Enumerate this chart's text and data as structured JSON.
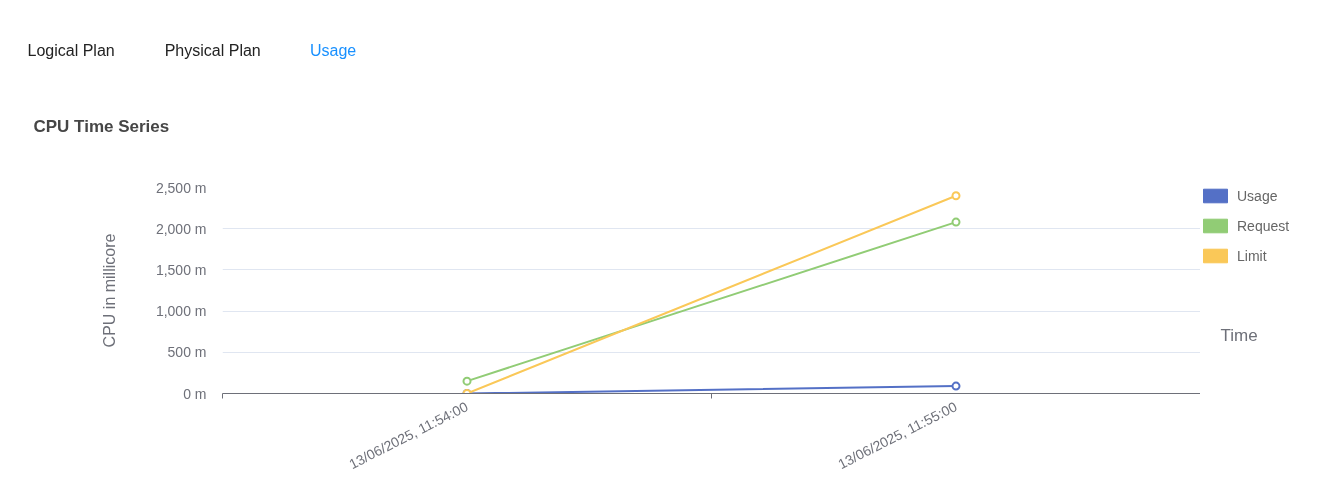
{
  "chart_data": {
    "type": "line",
    "title": "CPU Time Series",
    "xlabel": "Time",
    "ylabel": "CPU in millicore",
    "annotations": [
      "Logical Plan",
      "Physical Plan",
      "Usage"
    ],
    "categories": [
      "13/06/2025, 11:54:00",
      "13/06/2025, 11:55:00"
    ],
    "series": [
      {
        "name": "Usage",
        "color": "#5470c6",
        "values": [
          0,
          90
        ]
      },
      {
        "name": "Request",
        "color": "#91cc75",
        "values": [
          150,
          2080
        ]
      },
      {
        "name": "Limit",
        "color": "#fac858",
        "values": [
          0,
          2400
        ]
      }
    ],
    "ylim": [
      0,
      2500
    ],
    "yticks": [
      {
        "value": 0,
        "label": "0 m"
      },
      {
        "value": 500,
        "label": "500 m"
      },
      {
        "value": 1000,
        "label": "1,000 m"
      },
      {
        "value": 1500,
        "label": "1,500 m"
      },
      {
        "value": 2000,
        "label": "2,000 m"
      },
      {
        "value": 2500,
        "label": "2,500 m"
      }
    ],
    "grid": "y",
    "legend": "top right",
    "marker": "circle",
    "line_style": "solid"
  }
}
